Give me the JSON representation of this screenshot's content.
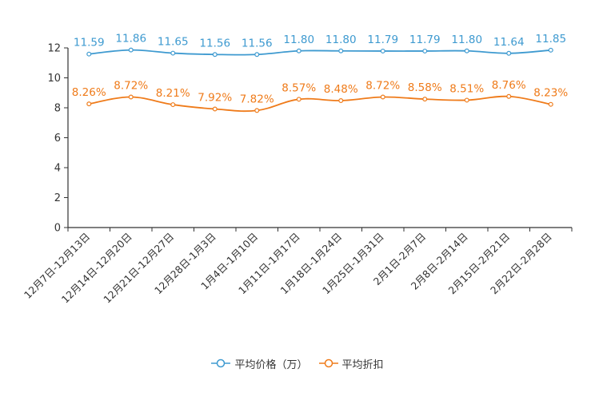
{
  "chart_data": {
    "type": "line",
    "categories": [
      "12月7日-12月13日",
      "12月14日-12月20日",
      "12月21日-12月27日",
      "12月28日-1月3日",
      "1月4日-1月10日",
      "1月11日-1月17日",
      "1月18日-1月24日",
      "1月25日-1月31日",
      "2月1日-2月7日",
      "2月8日-2月14日",
      "2月15日-2月21日",
      "2月22日-2月28日"
    ],
    "series": [
      {
        "name": "平均价格（万）",
        "color": "#3e9ad0",
        "values": [
          11.59,
          11.86,
          11.65,
          11.56,
          11.56,
          11.8,
          11.8,
          11.79,
          11.79,
          11.8,
          11.64,
          11.85
        ],
        "labels": [
          "11.59",
          "11.86",
          "11.65",
          "11.56",
          "11.56",
          "11.80",
          "11.80",
          "11.79",
          "11.79",
          "11.80",
          "11.64",
          "11.85"
        ]
      },
      {
        "name": "平均折扣",
        "color": "#ef7b1a",
        "values": [
          8.26,
          8.72,
          8.21,
          7.92,
          7.82,
          8.57,
          8.48,
          8.72,
          8.58,
          8.51,
          8.76,
          8.23
        ],
        "labels": [
          "8.26%",
          "8.72%",
          "8.21%",
          "7.92%",
          "7.82%",
          "8.57%",
          "8.48%",
          "8.72%",
          "8.58%",
          "8.51%",
          "8.76%",
          "8.23%"
        ]
      }
    ],
    "ylim": [
      0,
      12
    ],
    "yticks": [
      0,
      2,
      4,
      6,
      8,
      10,
      12
    ],
    "xlabel": "",
    "ylabel": "",
    "title": "",
    "legend_position": "bottom-center"
  }
}
